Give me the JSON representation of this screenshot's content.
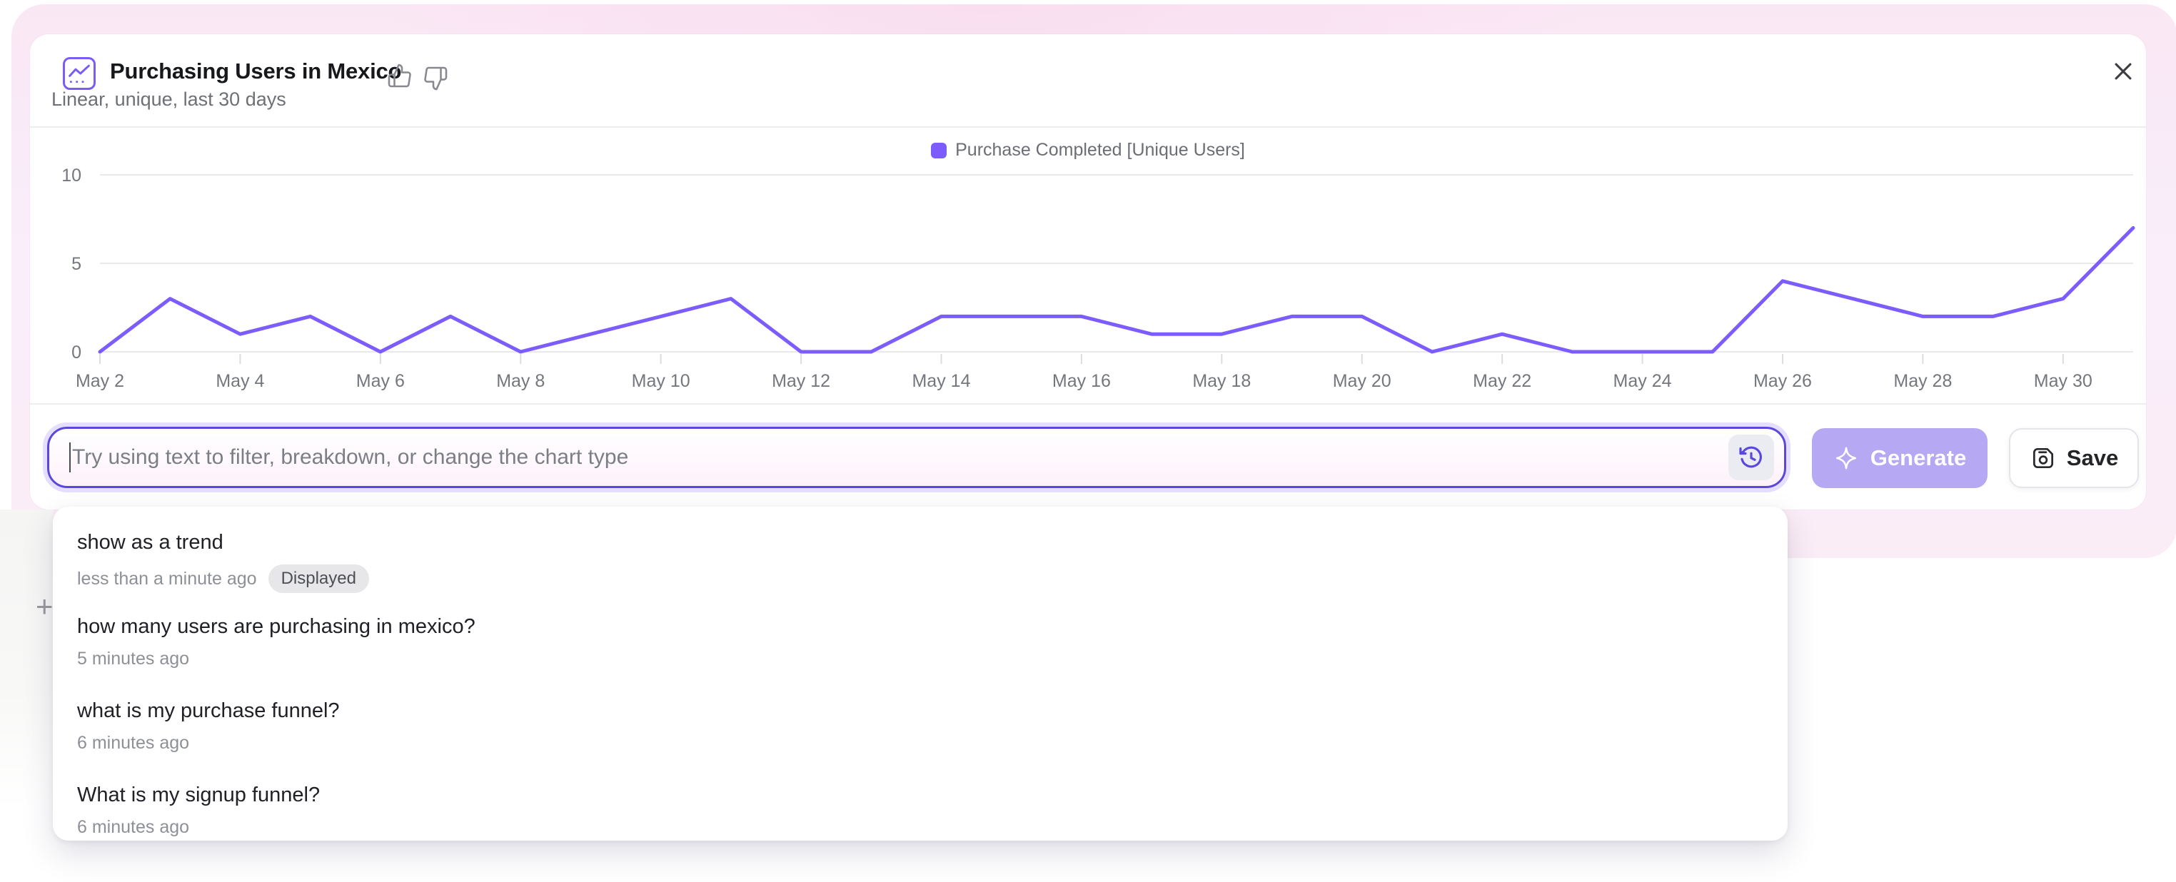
{
  "header": {
    "title": "Purchasing Users in Mexico",
    "subtitle": "Linear, unique, last 30 days"
  },
  "legend": {
    "label": "Purchase Completed [Unique Users]",
    "swatch_color": "#7c5cfc"
  },
  "chart_data": {
    "type": "line",
    "title": "Purchasing Users in Mexico",
    "x": [
      "May 2",
      "May 3",
      "May 4",
      "May 5",
      "May 6",
      "May 7",
      "May 8",
      "May 9",
      "May 10",
      "May 11",
      "May 12",
      "May 13",
      "May 14",
      "May 15",
      "May 16",
      "May 17",
      "May 18",
      "May 19",
      "May 20",
      "May 21",
      "May 22",
      "May 23",
      "May 24",
      "May 25",
      "May 26",
      "May 27",
      "May 28",
      "May 29",
      "May 30",
      "May 31"
    ],
    "series": [
      {
        "name": "Purchase Completed [Unique Users]",
        "color": "#7c5cfc",
        "values": [
          0,
          3,
          1,
          2,
          0,
          2,
          0,
          1,
          2,
          3,
          0,
          0,
          2,
          2,
          2,
          1,
          1,
          2,
          2,
          0,
          1,
          0,
          0,
          0,
          4,
          3,
          2,
          2,
          3,
          7
        ]
      }
    ],
    "xticks_shown": [
      "May 2",
      "May 4",
      "May 6",
      "May 8",
      "May 10",
      "May 12",
      "May 14",
      "May 16",
      "May 18",
      "May 20",
      "May 22",
      "May 24",
      "May 26",
      "May 28",
      "May 30"
    ],
    "ylim": [
      0,
      10
    ],
    "yticks": [
      0,
      5,
      10
    ],
    "grid": "horizontal",
    "legend_position": "top-center",
    "axis_label_color": "#74777d",
    "gridline_color": "#e9e9eb"
  },
  "prompt_bar": {
    "placeholder": "Try using text to filter, breakdown, or change the chart type",
    "value": "",
    "generate_label": "Generate",
    "generate_enabled": false,
    "save_label": "Save"
  },
  "history_dropdown": {
    "items": [
      {
        "query": "show as a trend",
        "time": "less than a minute ago",
        "badge": "Displayed"
      },
      {
        "query": "how many users are purchasing in mexico?",
        "time": "5 minutes ago",
        "badge": ""
      },
      {
        "query": "what is my purchase funnel?",
        "time": "6 minutes ago",
        "badge": ""
      },
      {
        "query": "What is my signup funnel?",
        "time": "6 minutes ago",
        "badge": ""
      }
    ]
  },
  "misc": {
    "plus_glyph": "+"
  },
  "colors": {
    "accent_purple": "#7c5cfc",
    "input_border": "#5a48dd",
    "generate_bg": "#b6a8f2",
    "halo_pink": "#fae3f3",
    "badge_bg": "#e7e7e9"
  }
}
